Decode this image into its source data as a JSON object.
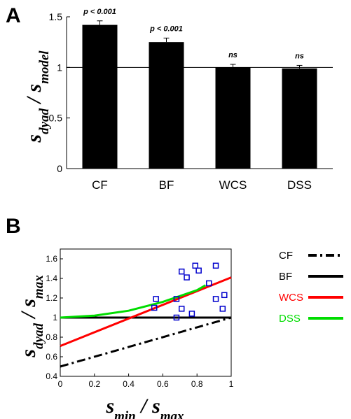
{
  "chart_data": [
    {
      "panel": "A",
      "type": "bar",
      "categories": [
        "CF",
        "BF",
        "WCS",
        "DSS"
      ],
      "values": [
        1.42,
        1.25,
        1.0,
        0.99
      ],
      "errors": [
        0.04,
        0.04,
        0.03,
        0.03
      ],
      "annotations": [
        "p < 0.001",
        "p < 0.001",
        "ns",
        "ns"
      ],
      "ylabel": {
        "main1": "s",
        "sub1": "dyad",
        "sep": " / ",
        "main2": "s",
        "sub2": "model"
      },
      "ylim": [
        0,
        1.5
      ],
      "yticks": [
        "0",
        "0.5",
        "1",
        "1.5"
      ],
      "reference_line": 1,
      "bar_color": "#000000"
    },
    {
      "panel": "B",
      "type": "line",
      "xlim": [
        0,
        1
      ],
      "ylim": [
        0.4,
        1.7
      ],
      "xticks": [
        "0",
        "0.2",
        "0.4",
        "0.6",
        "0.8",
        "1"
      ],
      "yticks": [
        "0.4",
        "0.6",
        "0.8",
        "1",
        "1.2",
        "1.4",
        "1.6"
      ],
      "xlabel": {
        "main1": "s",
        "sub1": "min",
        "sep": " / ",
        "main2": "s",
        "sub2": "max"
      },
      "ylabel": {
        "main1": "s",
        "sub1": "dyad",
        "sep": " / ",
        "main2": "s",
        "sub2": "max"
      },
      "series": [
        {
          "name": "CF",
          "color": "#000000",
          "style": "dashdot",
          "x": [
            0,
            1
          ],
          "y": [
            0.5,
            1.0
          ]
        },
        {
          "name": "BF",
          "color": "#000000",
          "style": "solid",
          "x": [
            0,
            1
          ],
          "y": [
            1.0,
            1.0
          ]
        },
        {
          "name": "WCS",
          "color": "#ff0000",
          "style": "solid",
          "x": [
            0,
            1
          ],
          "y": [
            0.71,
            1.41
          ]
        },
        {
          "name": "DSS",
          "color": "#00dd00",
          "style": "solid",
          "x": [
            0,
            0.2,
            0.4,
            0.6,
            0.8,
            0.85
          ],
          "y": [
            1.0,
            1.02,
            1.07,
            1.16,
            1.28,
            1.33
          ]
        }
      ],
      "scatter": {
        "color": "#0000cc",
        "points": [
          {
            "x": 0.55,
            "y": 1.1
          },
          {
            "x": 0.56,
            "y": 1.19
          },
          {
            "x": 0.68,
            "y": 1.19
          },
          {
            "x": 0.68,
            "y": 1.0
          },
          {
            "x": 0.71,
            "y": 1.47
          },
          {
            "x": 0.71,
            "y": 1.09
          },
          {
            "x": 0.74,
            "y": 1.41
          },
          {
            "x": 0.77,
            "y": 1.04
          },
          {
            "x": 0.79,
            "y": 1.53
          },
          {
            "x": 0.81,
            "y": 1.48
          },
          {
            "x": 0.87,
            "y": 1.35
          },
          {
            "x": 0.91,
            "y": 1.53
          },
          {
            "x": 0.91,
            "y": 1.19
          },
          {
            "x": 0.96,
            "y": 1.23
          },
          {
            "x": 0.95,
            "y": 1.09
          }
        ]
      },
      "legend": [
        {
          "label": "CF",
          "text_color": "#000000",
          "line_color": "#000000",
          "style": "dashdot"
        },
        {
          "label": "BF",
          "text_color": "#000000",
          "line_color": "#000000",
          "style": "solid"
        },
        {
          "label": "WCS",
          "text_color": "#ff0000",
          "line_color": "#ff0000",
          "style": "solid"
        },
        {
          "label": "DSS",
          "text_color": "#00dd00",
          "line_color": "#00dd00",
          "style": "solid"
        }
      ]
    }
  ]
}
